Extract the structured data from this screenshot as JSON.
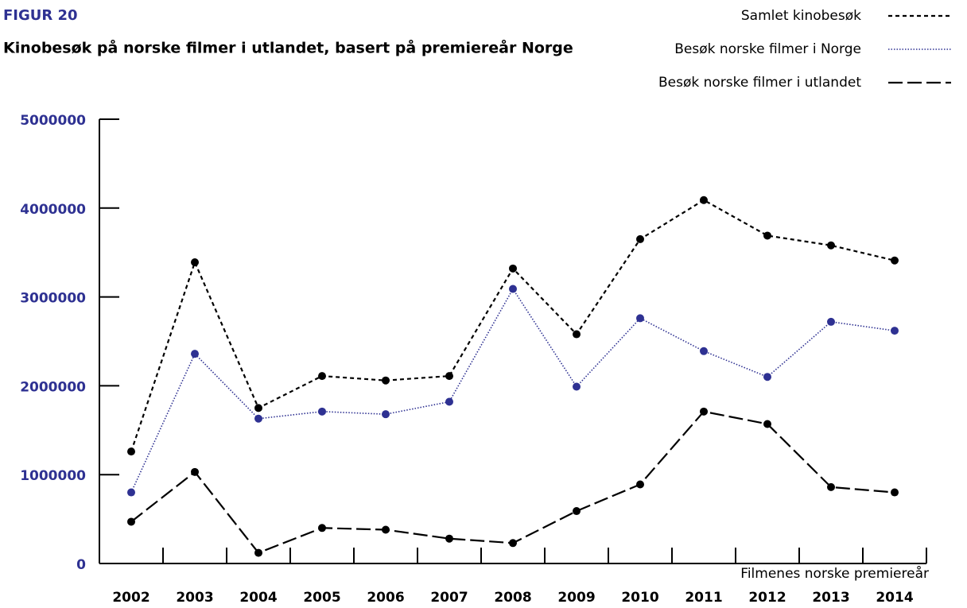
{
  "chart_data": {
    "type": "line",
    "figure_label": "FIGUR 20",
    "title": "Kinobesøk på norske filmer i utlandet, basert på premiereår Norge",
    "xlabel": "Filmenes norske premiereår",
    "categories": [
      "2002",
      "2003",
      "2004",
      "2005",
      "2006",
      "2007",
      "2008",
      "2009",
      "2010",
      "2011",
      "2012",
      "2013",
      "2014"
    ],
    "series": [
      {
        "name": "Samlet kinobesøk",
        "color": "#000000",
        "marker_color": "#000000",
        "linestyle": "dashed",
        "values": [
          1260000,
          3390000,
          1750000,
          2110000,
          2060000,
          2110000,
          3320000,
          2580000,
          3650000,
          4090000,
          3690000,
          3580000,
          3410000
        ]
      },
      {
        "name": "Besøk norske filmer i Norge",
        "color": "#2e3192",
        "marker_color": "#2e3192",
        "linestyle": "dotted",
        "values": [
          800000,
          2360000,
          1630000,
          1710000,
          1680000,
          1820000,
          3090000,
          1990000,
          2760000,
          2390000,
          2100000,
          2720000,
          2620000
        ]
      },
      {
        "name": "Besøk norske filmer i utlandet",
        "color": "#000000",
        "marker_color": "#000000",
        "linestyle": "longdash",
        "values": [
          470000,
          1030000,
          120000,
          400000,
          380000,
          280000,
          230000,
          590000,
          890000,
          1710000,
          1570000,
          860000,
          800000
        ]
      }
    ],
    "ylim": [
      0,
      5000000
    ],
    "yticks": [
      0,
      1000000,
      2000000,
      3000000,
      4000000,
      5000000
    ],
    "legend": "upper right",
    "grid": false
  }
}
